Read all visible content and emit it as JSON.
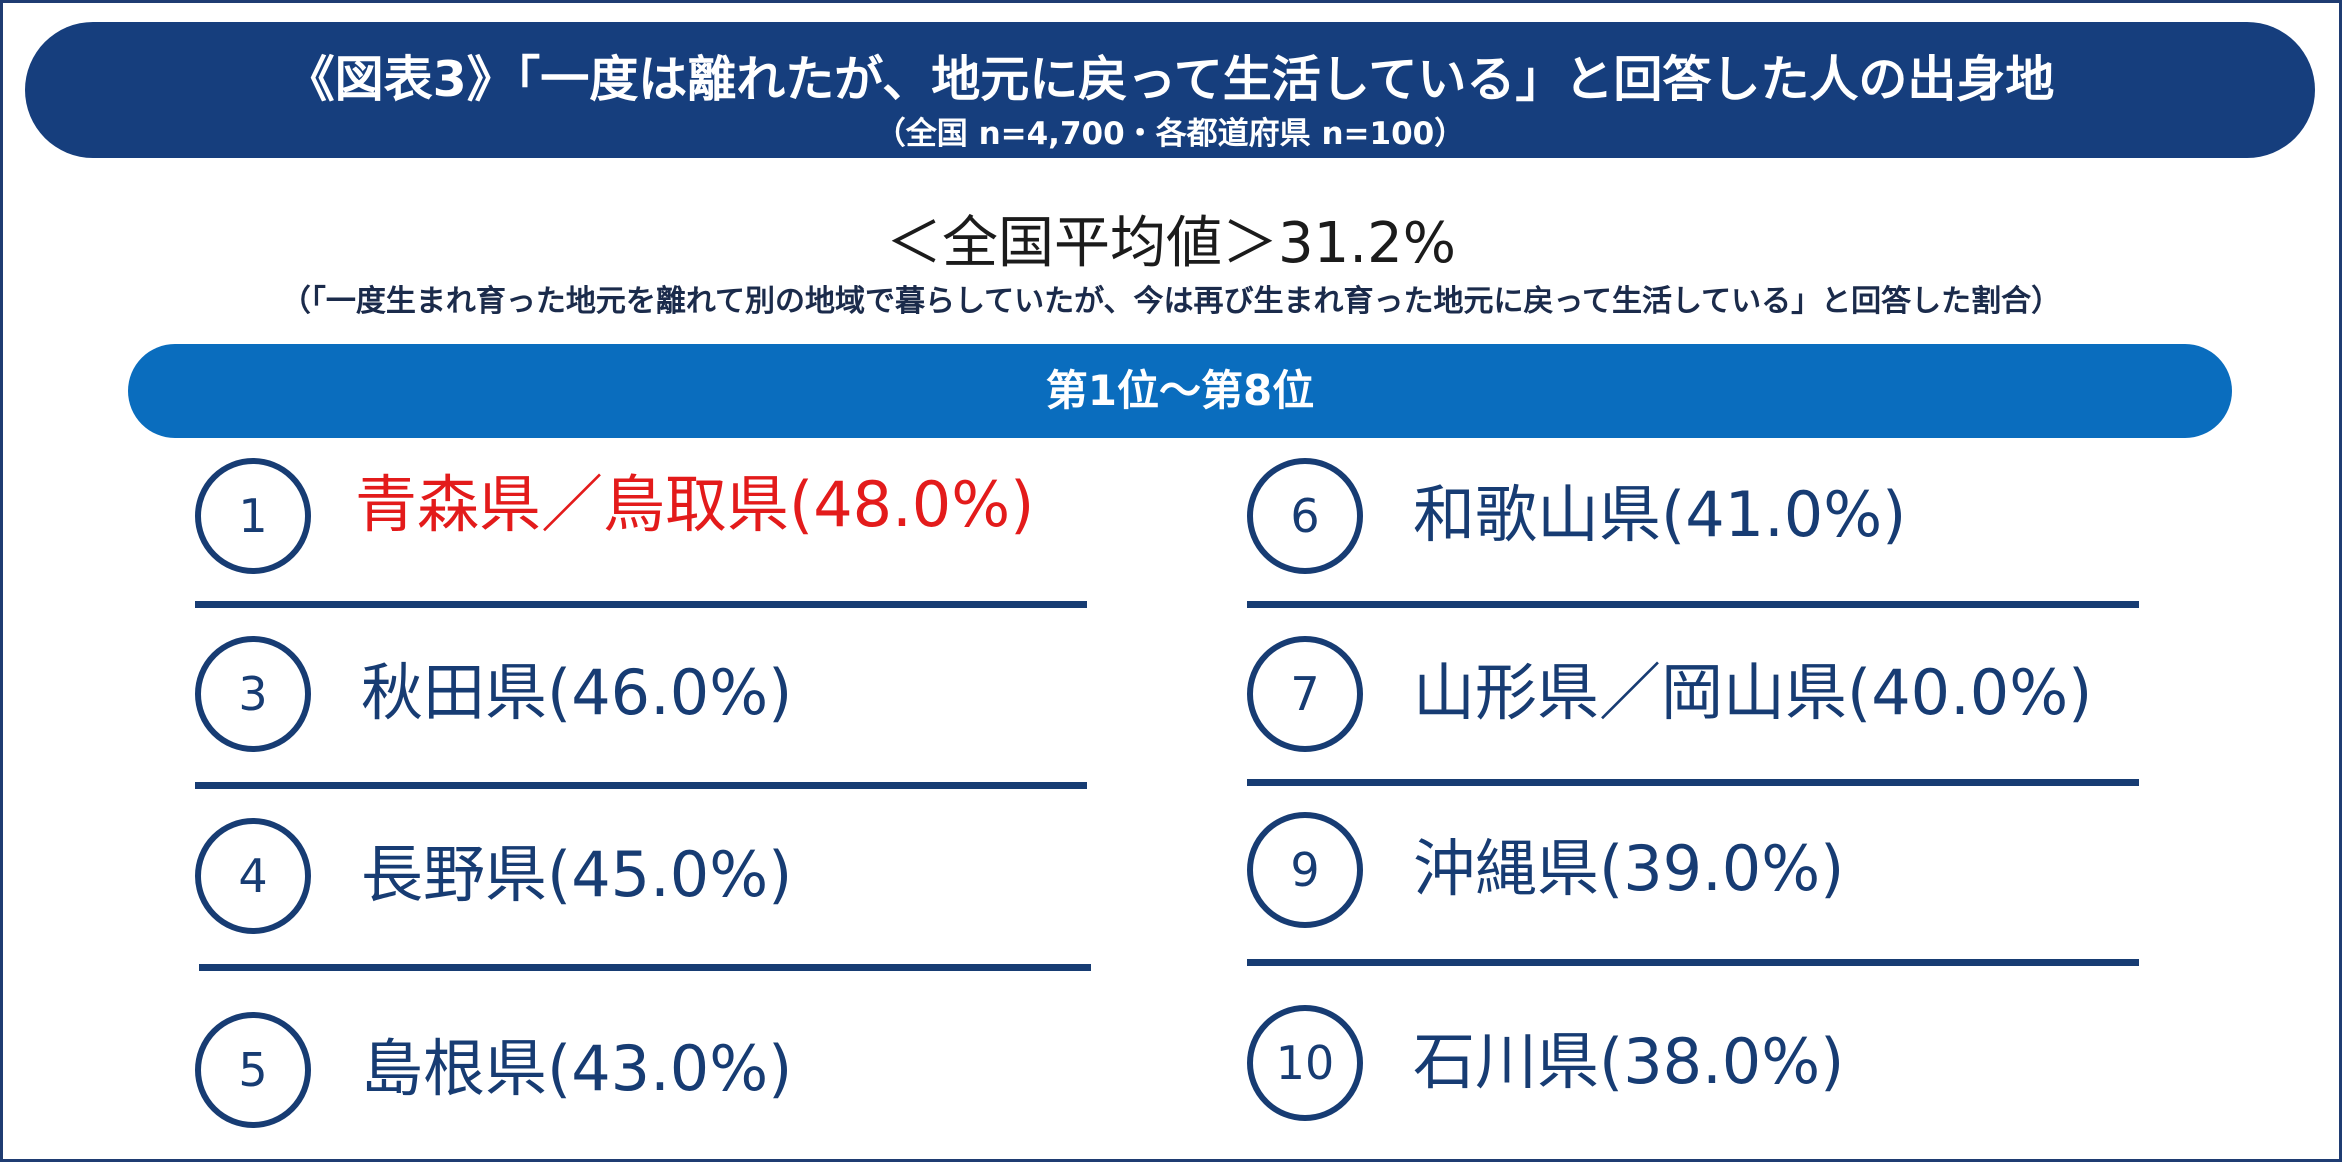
{
  "header": {
    "title": "《図表3》「一度は離れたが、地元に戻って生活している」と回答した人の出身地",
    "subtitle": "（全国 n=4,700・各都道府県 n=100）"
  },
  "national_average": "＜全国平均値＞31.2%",
  "definition_note": "（「一度生まれ育った地元を離れて別の地域で暮らしていたが、今は再び生まれ育った地元に戻って生活している」と回答した割合）",
  "range_label": "第1位～第8位",
  "rankings": [
    {
      "rank": "1",
      "label": "青森県／鳥取県(48.0%)"
    },
    {
      "rank": "3",
      "label": "秋田県(46.0%)"
    },
    {
      "rank": "4",
      "label": "長野県(45.0%)"
    },
    {
      "rank": "5",
      "label": "島根県(43.0%)"
    },
    {
      "rank": "6",
      "label": "和歌山県(41.0%)"
    },
    {
      "rank": "7",
      "label": "山形県／岡山県(40.0%)"
    },
    {
      "rank": "9",
      "label": "沖縄県(39.0%)"
    },
    {
      "rank": "10",
      "label": "石川県(38.0%)"
    }
  ],
  "colors": {
    "navy": "#163e7d",
    "banner_blue": "#0a6dbe",
    "highlight_red": "#e31b1b"
  }
}
